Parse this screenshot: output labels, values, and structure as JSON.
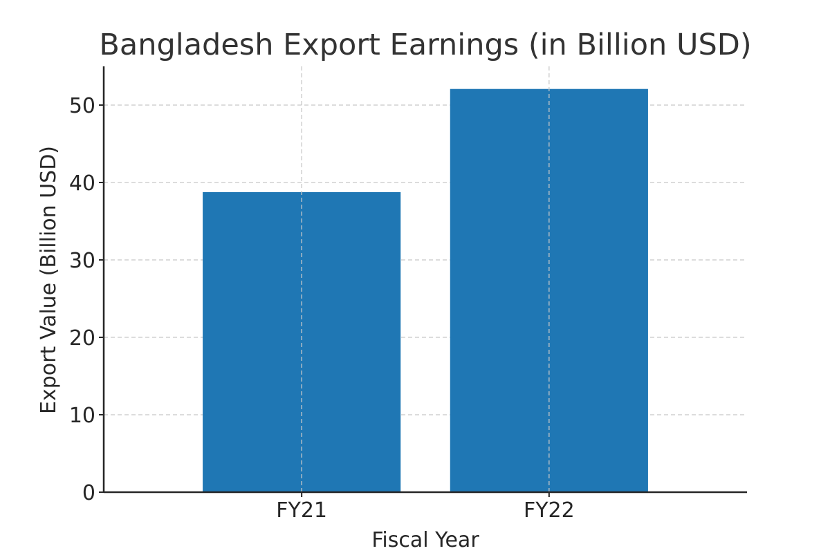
{
  "chart_data": {
    "type": "bar",
    "title": "Bangladesh Export Earnings (in Billion USD)",
    "xlabel": "Fiscal Year",
    "ylabel": "Export Value (Billion USD)",
    "categories": [
      "FY21",
      "FY22"
    ],
    "values": [
      38.76,
      52.08
    ],
    "ylim": [
      0,
      55
    ],
    "yticks": [
      0,
      10,
      20,
      30,
      40,
      50
    ],
    "grid": true,
    "bar_color": "#1f77b4"
  }
}
